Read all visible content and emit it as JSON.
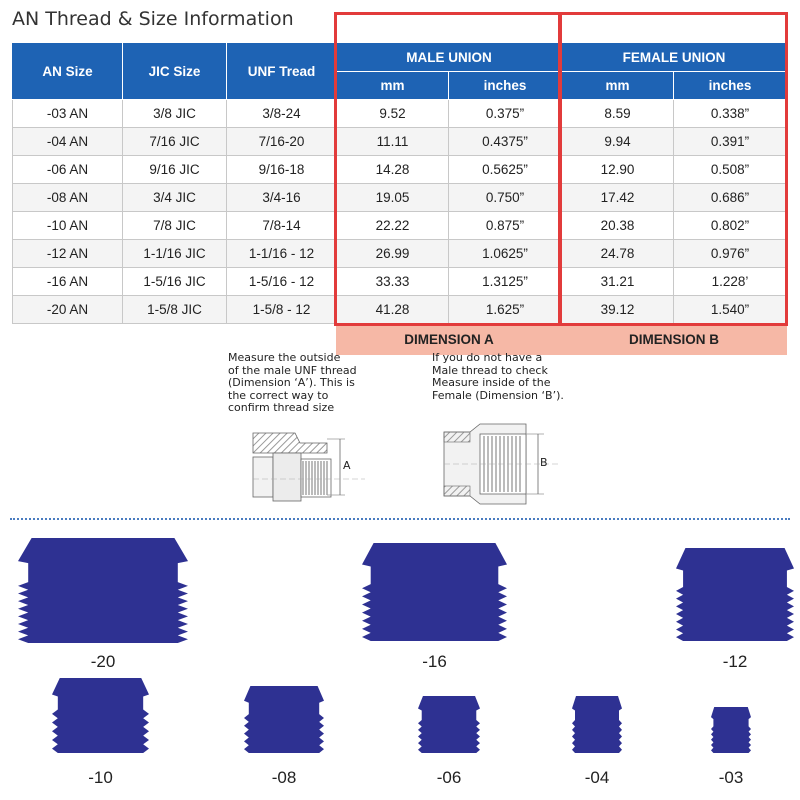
{
  "title": "AN Thread & Size Information",
  "table": {
    "header_groups": {
      "male": "MALE UNION",
      "female": "FEMALE UNION"
    },
    "columns": [
      "AN Size",
      "JIC Size",
      "UNF Tread",
      "mm",
      "inches",
      "mm",
      "inches"
    ],
    "rows": [
      [
        "-03 AN",
        "3/8 JIC",
        "3/8-24",
        "9.52",
        "0.375”",
        "8.59",
        "0.338”"
      ],
      [
        "-04 AN",
        "7/16 JIC",
        "7/16-20",
        "11.11",
        "0.4375”",
        "9.94",
        "0.391”"
      ],
      [
        "-06 AN",
        "9/16 JIC",
        "9/16-18",
        "14.28",
        "0.5625”",
        "12.90",
        "0.508”"
      ],
      [
        "-08 AN",
        "3/4 JIC",
        "3/4-16",
        "19.05",
        "0.750”",
        "17.42",
        "0.686”"
      ],
      [
        "-10 AN",
        "7/8 JIC",
        "7/8-14",
        "22.22",
        "0.875”",
        "20.38",
        "0.802”"
      ],
      [
        "-12 AN",
        "1-1/16 JIC",
        "1-1/16 - 12",
        "26.99",
        "1.0625”",
        "24.78",
        "0.976”"
      ],
      [
        "-16 AN",
        "1-5/16 JIC",
        "1-5/16 - 12",
        "33.33",
        "1.3125”",
        "31.21",
        "1.228’"
      ],
      [
        "-20 AN",
        "1-5/8 JIC",
        "1-5/8 - 12",
        "41.28",
        "1.625”",
        "39.12",
        "1.540”"
      ]
    ],
    "dimension_a": "DIMENSION A",
    "dimension_b": "DIMENSION B"
  },
  "notes": {
    "male": "Measure the outside\nof the male UNF thread\n(Dimension ‘A’). This is\n the correct way to\nconfirm thread size",
    "female": "If you do not have a\nMale thread to check\nMeasure inside of the\nFemale (Dimension ‘B’).",
    "label_a": "A",
    "label_b": "B"
  },
  "fitting_labels": [
    "-20",
    "-16",
    "-12",
    "-10",
    "-08",
    "-06",
    "-04",
    "-03"
  ],
  "colors": {
    "header_blue": "#1e63b4",
    "highlight_red": "#e23b3b",
    "dimension_fill": "#f6b8a6",
    "fitting_blue": "#2e3192"
  }
}
